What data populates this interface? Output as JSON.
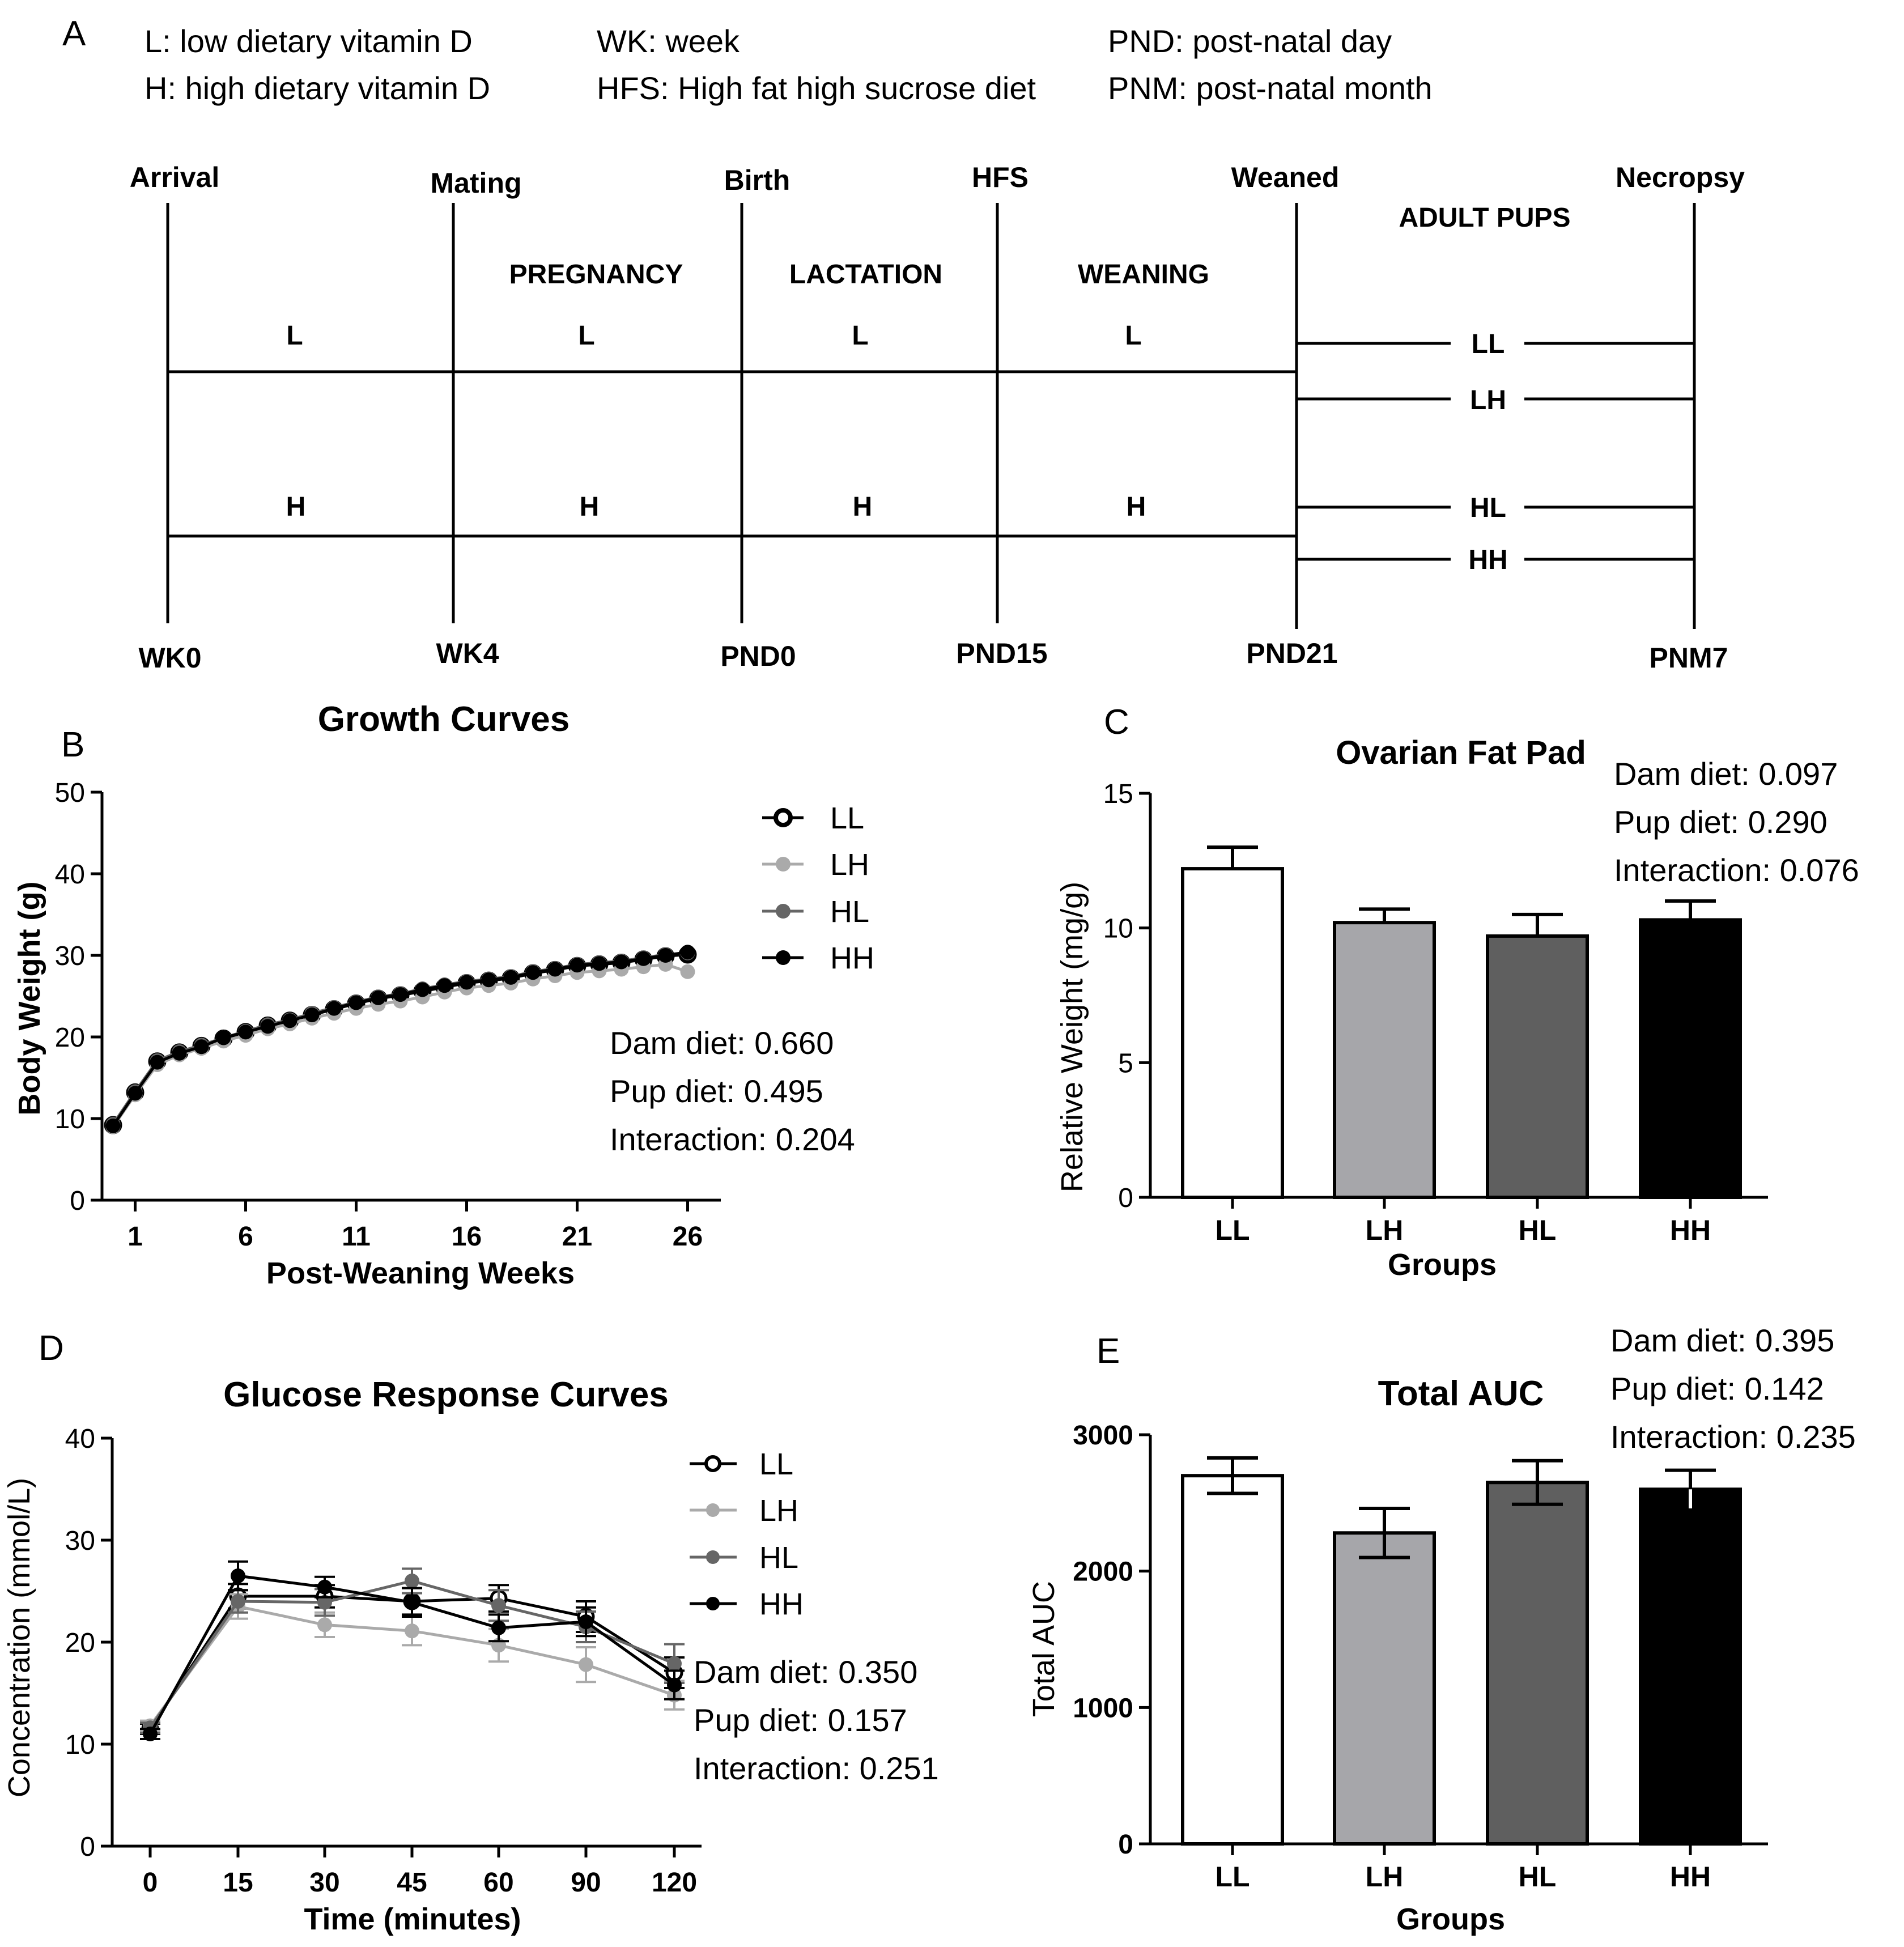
{
  "panel_a": {
    "letter": "A",
    "legend": [
      "L: low dietary vitamin D",
      "H: high dietary vitamin D",
      "WK: week",
      "HFS: High fat high sucrose diet",
      "PND: post-natal day",
      "PNM: post-natal month"
    ],
    "events": [
      "Arrival",
      "Mating",
      "Birth",
      "HFS",
      "Weaned",
      "Necropsy"
    ],
    "time_labels": [
      "WK0",
      "WK4",
      "PND0",
      "PND15",
      "PND21",
      "PNM7"
    ],
    "phases": [
      "PREGNANCY",
      "LACTATION",
      "WEANING",
      "ADULT PUPS"
    ],
    "l_label": "L",
    "h_label": "H",
    "pup_groups": [
      "LL",
      "LH",
      "HL",
      "HH"
    ]
  },
  "chart_data": [
    {
      "panel": "B",
      "type": "line",
      "title": "Growth Curves",
      "xlabel": "Post-Weaning Weeks",
      "ylabel": "Body Weight (g)",
      "xticks": [
        "1",
        "6",
        "11",
        "16",
        "21",
        "26"
      ],
      "yticks": [
        "0",
        "10",
        "20",
        "30",
        "40",
        "50"
      ],
      "xlim": [
        -0.5,
        27.5
      ],
      "ylim": [
        0,
        50
      ],
      "x": [
        0,
        1,
        2,
        3,
        4,
        5,
        6,
        7,
        8,
        9,
        10,
        11,
        12,
        13,
        14,
        15,
        16,
        17,
        18,
        19,
        20,
        21,
        22,
        23,
        24,
        25,
        26
      ],
      "series": [
        {
          "name": "LL",
          "values": [
            9.2,
            13.2,
            17.0,
            18.1,
            18.9,
            19.8,
            20.6,
            21.4,
            22.0,
            22.7,
            23.4,
            24.1,
            24.7,
            25.1,
            25.6,
            26.1,
            26.6,
            26.9,
            27.2,
            27.8,
            28.2,
            28.7,
            28.9,
            29.1,
            29.5,
            29.9,
            30.1
          ]
        },
        {
          "name": "LH",
          "values": [
            9.0,
            12.9,
            16.6,
            17.8,
            18.6,
            19.5,
            20.2,
            21.0,
            21.6,
            22.3,
            22.9,
            23.5,
            24.0,
            24.4,
            24.9,
            25.5,
            26.0,
            26.3,
            26.6,
            27.1,
            27.5,
            27.9,
            28.1,
            28.3,
            28.6,
            28.9,
            28.0
          ]
        },
        {
          "name": "HL",
          "values": [
            9.3,
            13.3,
            17.1,
            18.2,
            19.0,
            19.9,
            20.7,
            21.5,
            22.1,
            22.9,
            23.6,
            24.3,
            24.9,
            25.3,
            25.9,
            26.4,
            26.8,
            27.1,
            27.4,
            28.0,
            28.4,
            28.9,
            29.1,
            29.3,
            29.7,
            30.1,
            30.3
          ]
        },
        {
          "name": "HH",
          "values": [
            9.1,
            13.1,
            16.9,
            18.0,
            18.8,
            19.9,
            20.6,
            21.3,
            22.0,
            22.7,
            23.5,
            24.2,
            24.8,
            25.2,
            25.8,
            26.3,
            26.7,
            27.0,
            27.3,
            27.9,
            28.3,
            28.8,
            29.0,
            29.2,
            29.6,
            30.0,
            30.4
          ]
        }
      ],
      "legend": [
        "LL",
        "LH",
        "HL",
        "HH"
      ],
      "legend_position": "top-right",
      "stats": [
        "Dam diet: 0.660",
        "Pup diet: 0.495",
        "Interaction: 0.204"
      ]
    },
    {
      "panel": "C",
      "type": "bar",
      "title": "Ovarian Fat Pad",
      "xlabel": "Groups",
      "ylabel": "Relative Weight (mg/g)",
      "categories": [
        "LL",
        "LH",
        "HL",
        "HH"
      ],
      "values": [
        12.2,
        10.2,
        9.7,
        10.3
      ],
      "errors": [
        0.8,
        0.5,
        0.8,
        0.7
      ],
      "colors": [
        "#ffffff",
        "#a6a6aa",
        "#5f5f5f",
        "#000000"
      ],
      "ylim": [
        0,
        15
      ],
      "yticks": [
        "0",
        "5",
        "10",
        "15"
      ],
      "stats": [
        "Dam diet: 0.097",
        "Pup diet: 0.290",
        "Interaction: 0.076"
      ]
    },
    {
      "panel": "D",
      "type": "line",
      "title": "Glucose Response Curves",
      "xlabel": "Time (minutes)",
      "ylabel": "Concentration (mmol/L)",
      "categories": [
        "0",
        "15",
        "30",
        "45",
        "60",
        "90",
        "120"
      ],
      "ylim": [
        0,
        40
      ],
      "yticks": [
        "0",
        "10",
        "20",
        "30",
        "40"
      ],
      "series": [
        {
          "name": "LL",
          "values": [
            11.5,
            24.5,
            24.5,
            24.0,
            24.3,
            22.5,
            17.0
          ],
          "errors": [
            0.5,
            1.2,
            1.1,
            1.3,
            1.3,
            1.5,
            1.5
          ]
        },
        {
          "name": "LH",
          "values": [
            11.8,
            23.5,
            21.7,
            21.1,
            19.7,
            17.8,
            14.8
          ],
          "errors": [
            0.5,
            1.2,
            1.2,
            1.4,
            1.6,
            1.7,
            1.4
          ]
        },
        {
          "name": "HL",
          "values": [
            11.6,
            24.0,
            23.9,
            26.0,
            23.6,
            21.5,
            17.9
          ],
          "errors": [
            0.5,
            1.1,
            1.3,
            1.2,
            1.5,
            1.5,
            1.9
          ]
        },
        {
          "name": "HH",
          "values": [
            11.0,
            26.5,
            25.4,
            23.9,
            21.4,
            22.0,
            15.8
          ],
          "errors": [
            0.5,
            1.4,
            1.0,
            1.4,
            1.3,
            1.4,
            1.4
          ]
        }
      ],
      "legend": [
        "LL",
        "LH",
        "HL",
        "HH"
      ],
      "legend_position": "top-right",
      "stats": [
        "Dam diet: 0.350",
        "Pup diet: 0.157",
        "Interaction: 0.251"
      ]
    },
    {
      "panel": "E",
      "type": "bar",
      "title": "Total AUC",
      "xlabel": "Groups",
      "ylabel": "Total AUC",
      "categories": [
        "LL",
        "LH",
        "HL",
        "HH"
      ],
      "values": [
        2700,
        2280,
        2650,
        2600
      ],
      "errors": [
        130,
        180,
        160,
        140
      ],
      "colors": [
        "#ffffff",
        "#a6a6aa",
        "#5f5f5f",
        "#000000"
      ],
      "ylim": [
        0,
        3000
      ],
      "yticks": [
        "0",
        "1000",
        "2000",
        "3000"
      ],
      "stats": [
        "Dam diet: 0.395",
        "Pup diet: 0.142",
        "Interaction: 0.235"
      ]
    }
  ]
}
